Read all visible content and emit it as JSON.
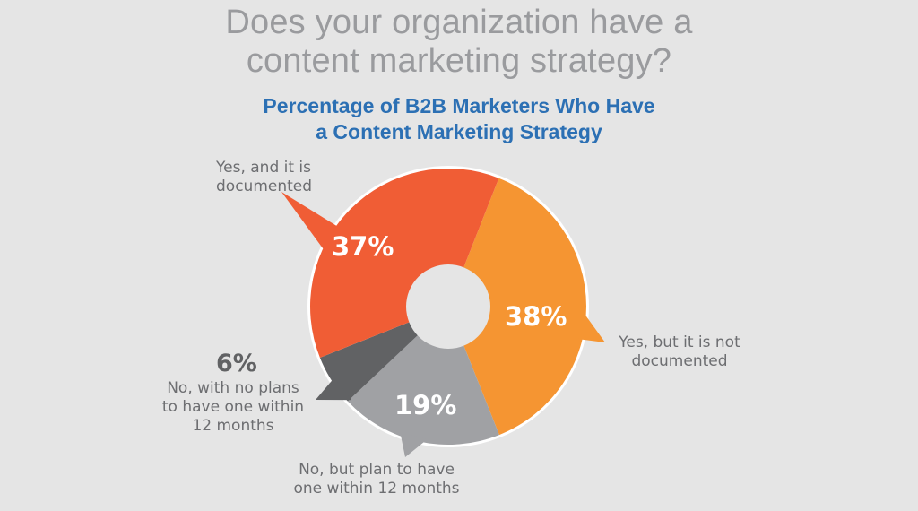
{
  "title": {
    "line1": "Does your organization have a",
    "line2": "content marketing strategy?"
  },
  "subtitle": {
    "line1": "Percentage of B2B Marketers Who Have",
    "line2": "a Content Marketing Strategy"
  },
  "colors": {
    "background": "#e5e5e5",
    "documented": "#f05d35",
    "not_documented": "#f59532",
    "plan_to_have": "#a0a1a4",
    "no_plans": "#616264",
    "title_gray": "#9a9b9e",
    "subtitle_blue": "#2c70b4"
  },
  "slices": [
    {
      "pct": "37%",
      "label_line1": "Yes, and it is",
      "label_line2": "documented",
      "label_line3": ""
    },
    {
      "pct": "38%",
      "label_line1": "Yes, but it is not",
      "label_line2": "documented",
      "label_line3": ""
    },
    {
      "pct": "19%",
      "label_line1": "No, but plan to have",
      "label_line2": "one within 12 months",
      "label_line3": ""
    },
    {
      "pct": "6%",
      "label_line1": "No, with no plans",
      "label_line2": "to have one within",
      "label_line3": "12 months"
    }
  ],
  "chart_data": {
    "type": "pie",
    "variant": "donut",
    "title": "Does your organization have a content marketing strategy?",
    "subtitle": "Percentage of B2B Marketers Who Have a Content Marketing Strategy",
    "categories": [
      "Yes, and it is documented",
      "Yes, but it is not documented",
      "No, but plan to have one within 12 months",
      "No, with no plans to have one within 12 months"
    ],
    "values": [
      37,
      38,
      19,
      6
    ],
    "unit": "%",
    "colors": [
      "#f05d35",
      "#f59532",
      "#a0a1a4",
      "#616264"
    ],
    "legend": "callout labels beside each slice"
  }
}
